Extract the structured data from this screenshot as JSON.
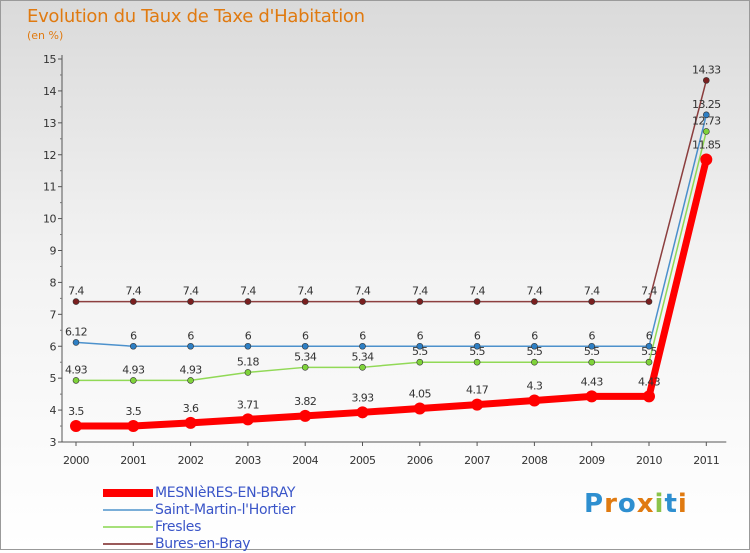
{
  "title": "Evolution du Taux de Taxe d'Habitation",
  "subtitle": "(en %)",
  "logo": [
    "P",
    "r",
    "o",
    "x",
    "i",
    "t",
    "i"
  ],
  "chart_data": {
    "type": "line",
    "x": [
      "2000",
      "2001",
      "2002",
      "2003",
      "2004",
      "2005",
      "2006",
      "2007",
      "2008",
      "2009",
      "2010",
      "2011"
    ],
    "ylim": [
      3,
      15
    ],
    "yticks": [
      "3",
      "4",
      "5",
      "6",
      "7",
      "8",
      "9",
      "10",
      "11",
      "12",
      "13",
      "14",
      "15"
    ],
    "grid": false,
    "legend_position": "bottom-left",
    "series": [
      {
        "name": "Bures-en-Bray",
        "color": "#7a1f1f",
        "values": [
          7.4,
          7.4,
          7.4,
          7.4,
          7.4,
          7.4,
          7.4,
          7.4,
          7.4,
          7.4,
          7.4,
          14.33
        ],
        "labels": [
          "7.4",
          "7.4",
          "7.4",
          "7.4",
          "7.4",
          "7.4",
          "7.4",
          "7.4",
          "7.4",
          "7.4",
          "7.4",
          "14.33"
        ]
      },
      {
        "name": "Saint-Martin-l'Hortier",
        "color": "#2e7fc4",
        "values": [
          6.12,
          6,
          6,
          6,
          6,
          6,
          6,
          6,
          6,
          6,
          6,
          13.25
        ],
        "labels": [
          "6.12",
          "6",
          "6",
          "6",
          "6",
          "6",
          "6",
          "6",
          "6",
          "6",
          "6",
          "13.25"
        ]
      },
      {
        "name": "Fresles",
        "color": "#7fd33a",
        "values": [
          4.93,
          4.93,
          4.93,
          5.18,
          5.34,
          5.34,
          5.5,
          5.5,
          5.5,
          5.5,
          5.5,
          12.73
        ],
        "labels": [
          "4.93",
          "4.93",
          "4.93",
          "5.18",
          "5.34",
          "5.34",
          "5.5",
          "5.5",
          "5.5",
          "5.5",
          "5.5",
          "12.73"
        ]
      },
      {
        "name": "MESNIèRES-EN-BRAY",
        "color": "#ff0000",
        "values": [
          3.5,
          3.5,
          3.6,
          3.71,
          3.82,
          3.93,
          4.05,
          4.17,
          4.3,
          4.43,
          4.43,
          11.85
        ],
        "labels": [
          "3.5",
          "3.5",
          "3.6",
          "3.71",
          "3.82",
          "3.93",
          "4.05",
          "4.17",
          "4.3",
          "4.43",
          "4.43",
          "11.85"
        ]
      }
    ],
    "legend": [
      {
        "name": "MESNIèRES-EN-BRAY",
        "color": "#ff0000",
        "thick": true
      },
      {
        "name": "Saint-Martin-l'Hortier",
        "color": "#7aaed8",
        "thick": false
      },
      {
        "name": "Fresles",
        "color": "#a6e07a",
        "thick": false
      },
      {
        "name": "Bures-en-Bray",
        "color": "#9a5a5a",
        "thick": false
      }
    ]
  }
}
